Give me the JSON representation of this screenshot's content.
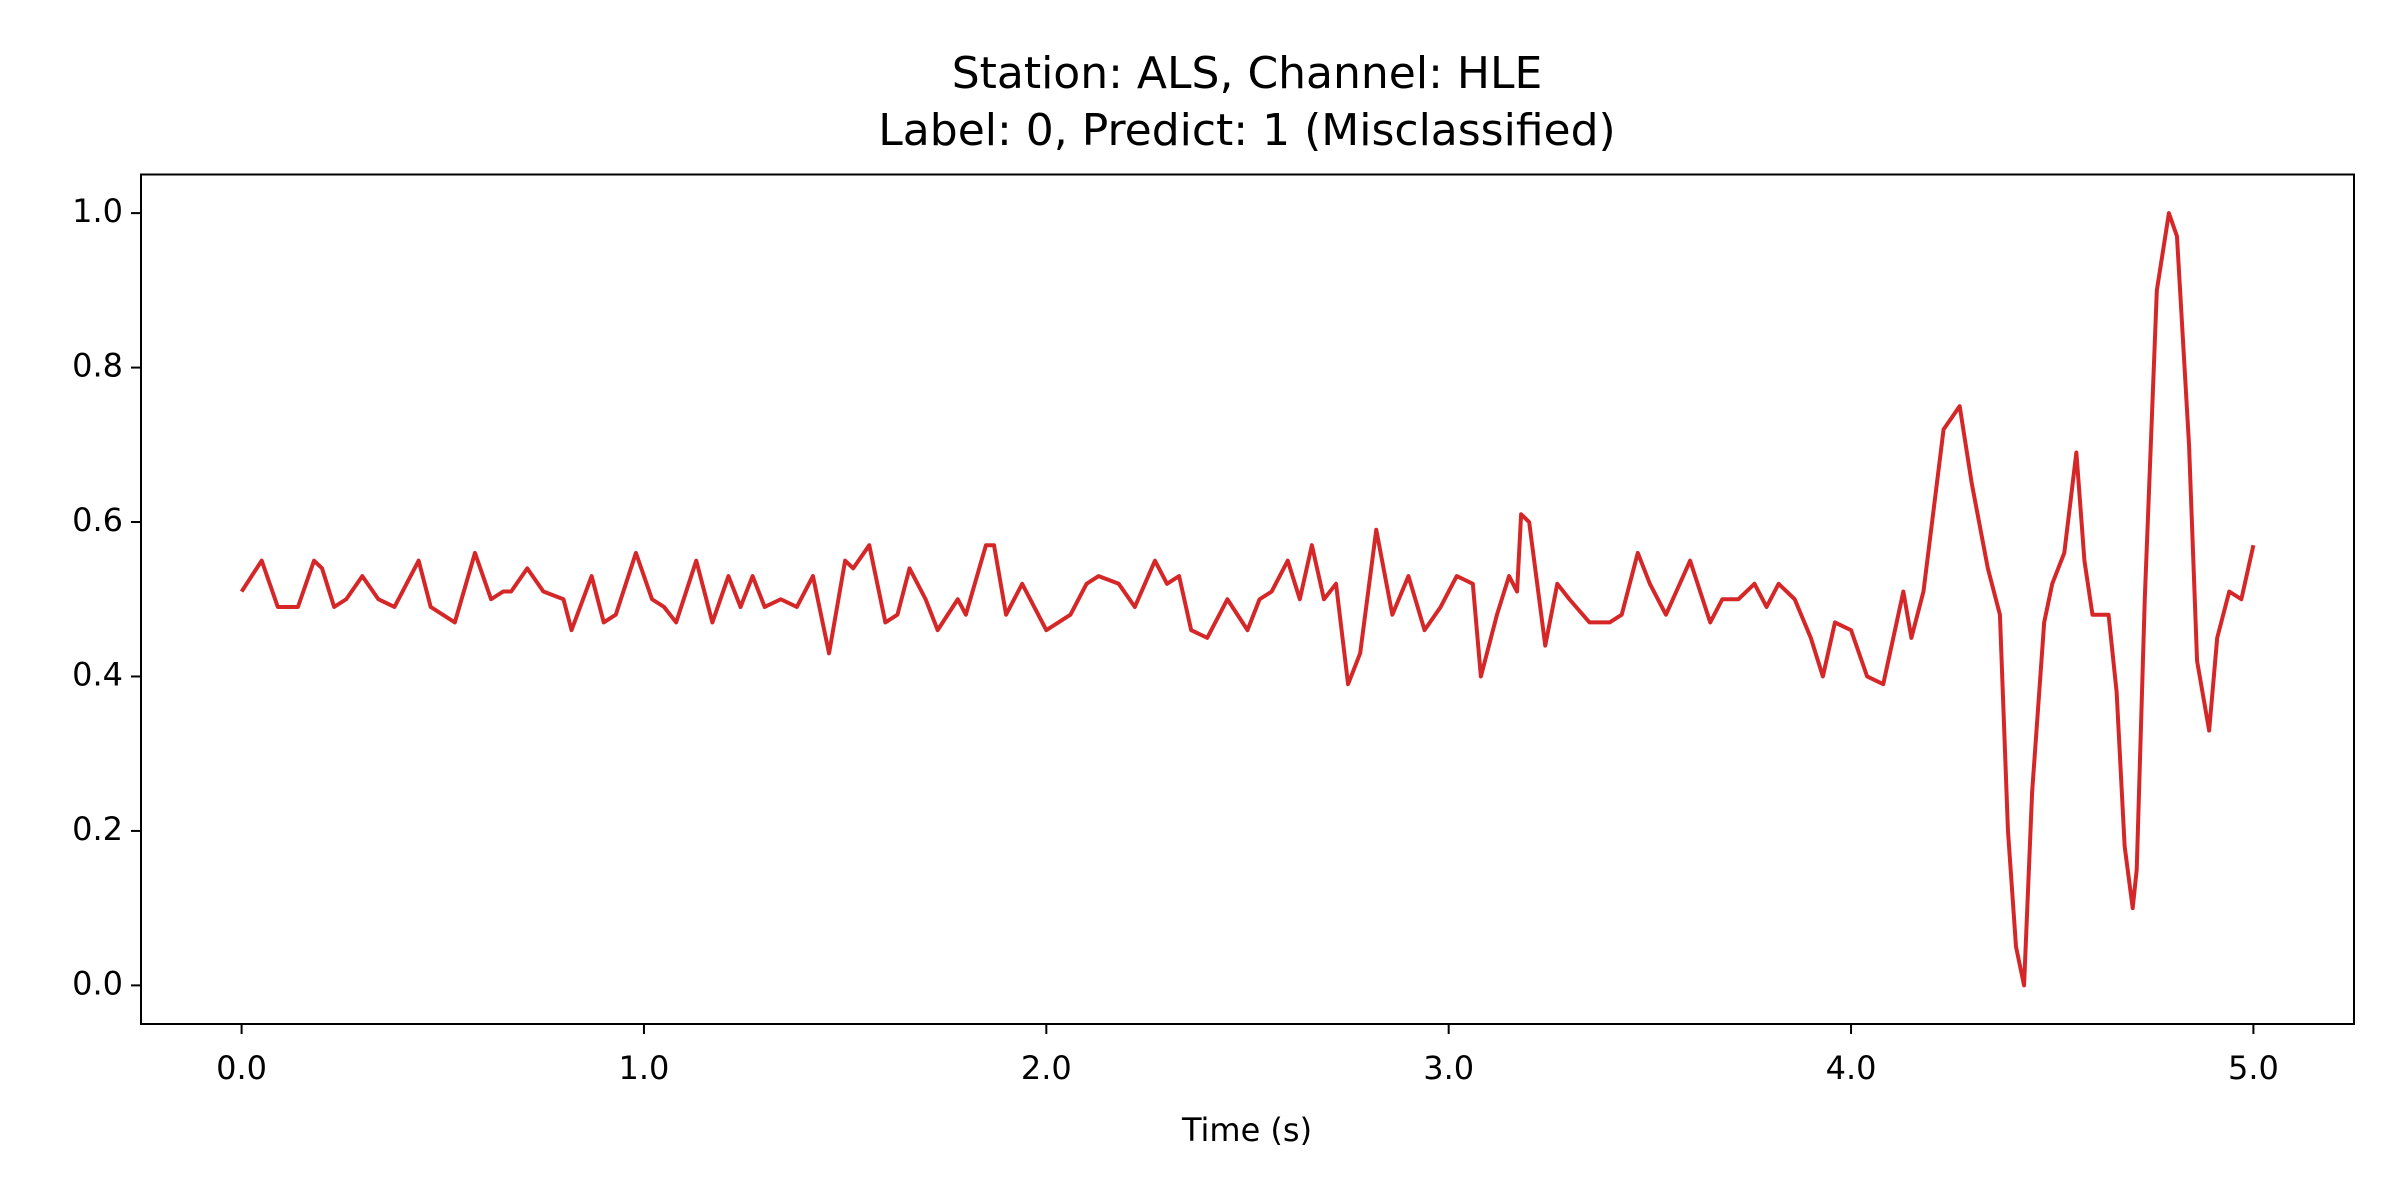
{
  "chart_data": {
    "type": "line",
    "title": "Station: ALS, Channel: HLE",
    "subtitle": "Label: 0, Predict: 1 (Misclassified)",
    "x_label": "Time (s)",
    "color": "#d62728",
    "grid": false,
    "xlim": [
      -0.25,
      5.25
    ],
    "ylim": [
      -0.05,
      1.05
    ],
    "xticks": [
      {
        "value": 0,
        "label": "0.0"
      },
      {
        "value": 1,
        "label": "1.0"
      },
      {
        "value": 2,
        "label": "2.0"
      },
      {
        "value": 3,
        "label": "3.0"
      },
      {
        "value": 4,
        "label": "4.0"
      },
      {
        "value": 5,
        "label": "5.0"
      }
    ],
    "yticks": [
      {
        "value": 0,
        "label": "0.0"
      },
      0.2,
      0.4,
      0.6,
      0.8,
      {
        "value": 1,
        "label": "1.0"
      }
    ],
    "x": [
      0,
      0.05,
      0.09,
      0.12,
      0.14,
      0.18,
      0.2,
      0.23,
      0.26,
      0.3,
      0.34,
      0.38,
      0.41,
      0.44,
      0.47,
      0.5,
      0.53,
      0.58,
      0.62,
      0.65,
      0.67,
      0.71,
      0.75,
      0.8,
      0.82,
      0.87,
      0.9,
      0.93,
      0.98,
      1.02,
      1.05,
      1.08,
      1.13,
      1.17,
      1.21,
      1.24,
      1.27,
      1.3,
      1.34,
      1.38,
      1.42,
      1.46,
      1.5,
      1.52,
      1.56,
      1.6,
      1.63,
      1.66,
      1.7,
      1.73,
      1.78,
      1.8,
      1.85,
      1.87,
      1.9,
      1.94,
      2.0,
      2.03,
      2.06,
      2.1,
      2.13,
      2.18,
      2.22,
      2.27,
      2.3,
      2.33,
      2.36,
      2.4,
      2.45,
      2.5,
      2.53,
      2.56,
      2.6,
      2.63,
      2.66,
      2.69,
      2.72,
      2.75,
      2.78,
      2.82,
      2.86,
      2.9,
      2.94,
      2.98,
      3.02,
      3.06,
      3.08,
      3.12,
      3.15,
      3.17,
      3.18,
      3.2,
      3.24,
      3.27,
      3.3,
      3.35,
      3.4,
      3.43,
      3.47,
      3.5,
      3.54,
      3.6,
      3.65,
      3.68,
      3.72,
      3.76,
      3.79,
      3.82,
      3.86,
      3.9,
      3.93,
      3.96,
      4.0,
      4.04,
      4.08,
      4.13,
      4.15,
      4.18,
      4.23,
      4.27,
      4.3,
      4.34,
      4.37,
      4.39,
      4.41,
      4.43,
      4.45,
      4.48,
      4.5,
      4.53,
      4.56,
      4.58,
      4.6,
      4.64,
      4.66,
      4.68,
      4.7,
      4.71,
      4.73,
      4.76,
      4.79,
      4.81,
      4.84,
      4.86,
      4.89,
      4.91,
      4.94,
      4.97,
      5.0
    ],
    "values": [
      0.51,
      0.55,
      0.49,
      0.49,
      0.49,
      0.55,
      0.54,
      0.49,
      0.5,
      0.53,
      0.5,
      0.49,
      0.52,
      0.55,
      0.49,
      0.48,
      0.47,
      0.56,
      0.5,
      0.51,
      0.51,
      0.54,
      0.51,
      0.5,
      0.46,
      0.53,
      0.47,
      0.48,
      0.56,
      0.5,
      0.49,
      0.47,
      0.55,
      0.47,
      0.53,
      0.49,
      0.53,
      0.49,
      0.5,
      0.49,
      0.53,
      0.43,
      0.55,
      0.54,
      0.57,
      0.47,
      0.48,
      0.54,
      0.5,
      0.46,
      0.5,
      0.48,
      0.57,
      0.57,
      0.48,
      0.52,
      0.46,
      0.47,
      0.48,
      0.52,
      0.53,
      0.52,
      0.49,
      0.55,
      0.52,
      0.53,
      0.46,
      0.45,
      0.5,
      0.46,
      0.5,
      0.51,
      0.55,
      0.5,
      0.57,
      0.5,
      0.52,
      0.39,
      0.43,
      0.59,
      0.48,
      0.53,
      0.46,
      0.49,
      0.53,
      0.52,
      0.4,
      0.48,
      0.53,
      0.51,
      0.61,
      0.6,
      0.44,
      0.52,
      0.5,
      0.47,
      0.47,
      0.48,
      0.56,
      0.52,
      0.48,
      0.55,
      0.47,
      0.5,
      0.5,
      0.52,
      0.49,
      0.52,
      0.5,
      0.45,
      0.4,
      0.47,
      0.46,
      0.4,
      0.39,
      0.51,
      0.45,
      0.51,
      0.72,
      0.75,
      0.65,
      0.54,
      0.48,
      0.2,
      0.05,
      0.0,
      0.25,
      0.47,
      0.52,
      0.56,
      0.69,
      0.55,
      0.48,
      0.48,
      0.38,
      0.18,
      0.1,
      0.15,
      0.5,
      0.9,
      1.0,
      0.97,
      0.7,
      0.42,
      0.33,
      0.45,
      0.51,
      0.5,
      0.57
    ]
  }
}
